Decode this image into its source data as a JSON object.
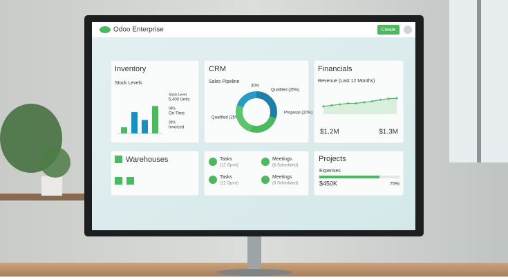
{
  "header": {
    "title": "Odoo Enterprise",
    "create": "Create"
  },
  "inventory": {
    "title": "Inventory",
    "subtitle": "Stock Levels",
    "chart": {
      "values": [
        10,
        35,
        22,
        45
      ],
      "colors": [
        "#4cb860",
        "#1a8fc0",
        "#1a8fc0",
        "#4cb860"
      ],
      "ylim": [
        0,
        60
      ]
    },
    "legend": [
      "Stock Level",
      "5,400 Units",
      "98%",
      "On-Time",
      "98%",
      "Invoiced"
    ]
  },
  "crm": {
    "title": "CRM",
    "subtitle": "Sales Pipeline",
    "donut": {
      "values": [
        30,
        25,
        25,
        20
      ],
      "colors": [
        "#1f7fa6",
        "#4cb860",
        "#5bc46d",
        "#2a9cc4"
      ]
    },
    "labels": [
      "30%",
      "Qualified (25%)",
      "Qualified (25%)",
      "Proposal (20%)"
    ]
  },
  "financials": {
    "title": "Financials",
    "subtitle": "Revenue (Last 12 Months)",
    "line": {
      "values": [
        30,
        34,
        38,
        42,
        42,
        46,
        50,
        56,
        60,
        62
      ],
      "ylim": [
        0,
        100
      ],
      "color": "#4cb860"
    },
    "left": "$1.2M",
    "right": "$1.3M"
  },
  "warehouses": {
    "title": "Warehouses"
  },
  "activities": [
    {
      "title": "Tasks",
      "detail": "(12 Open)"
    },
    {
      "title": "Meetings",
      "detail": "(8 Scheduled)"
    },
    {
      "title": "Tasks",
      "detail": "(12 Open)"
    },
    {
      "title": "Meetings",
      "detail": "(8 Scheduled)"
    }
  ],
  "projects": {
    "title": "Projects",
    "subtitle": "Expenses",
    "amount": "$450K",
    "progress": {
      "value": 75,
      "label": "75%"
    }
  }
}
